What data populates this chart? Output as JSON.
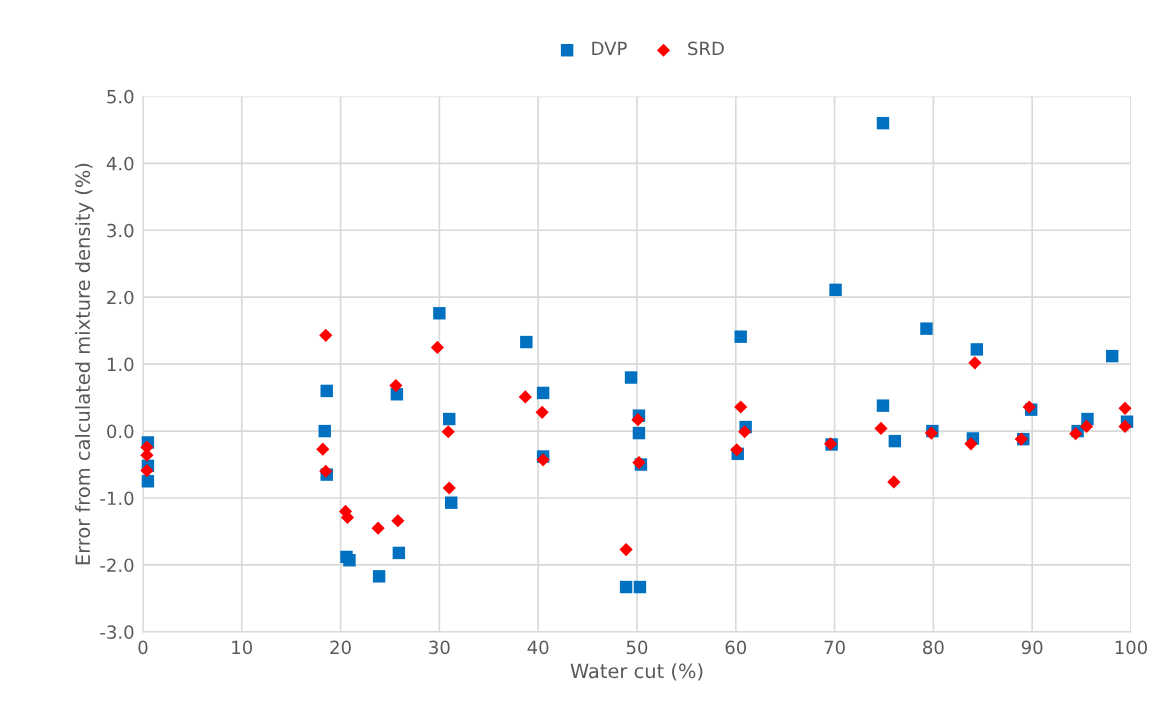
{
  "chart_data": {
    "type": "scatter",
    "xlabel": "Water cut (%)",
    "ylabel": "Error from calculated mixture density (%)",
    "xlim": [
      0,
      100
    ],
    "xticks": [
      0,
      10,
      20,
      30,
      40,
      50,
      60,
      70,
      80,
      90,
      100
    ],
    "ylim": [
      -3,
      5
    ],
    "yticks": [
      {
        "value": -3,
        "label": "-3.0"
      },
      {
        "value": -2,
        "label": "-2.0"
      },
      {
        "value": -1,
        "label": "-1.0"
      },
      {
        "value": 0,
        "label": "0.0"
      },
      {
        "value": 1,
        "label": "1.0"
      },
      {
        "value": 2,
        "label": "2.0"
      },
      {
        "value": 3,
        "label": "3.0"
      },
      {
        "value": 4,
        "label": "4.0"
      },
      {
        "value": 5,
        "label": "5.0"
      }
    ],
    "grid": true,
    "legend": "top",
    "series": [
      {
        "name": "DVP",
        "color": "#0070c0",
        "marker": "square",
        "x": [
          0.5,
          0.5,
          0.5,
          18.4,
          18.6,
          18.6,
          20.6,
          20.9,
          23.9,
          25.9,
          25.7,
          30.0,
          31.0,
          31.2,
          38.8,
          40.5,
          40.5,
          49.4,
          50.2,
          50.2,
          50.4,
          48.9,
          50.3,
          60.5,
          61.0,
          60.2,
          70.1,
          69.7,
          74.9,
          74.9,
          76.1,
          79.3,
          79.9,
          84.4,
          84.0,
          89.1,
          89.9,
          94.6,
          95.6,
          98.1,
          99.6
        ],
        "values": [
          -0.17,
          -0.52,
          -0.75,
          0.0,
          0.6,
          -0.65,
          -1.88,
          -1.93,
          -2.17,
          -1.82,
          0.55,
          1.76,
          0.18,
          -1.07,
          1.33,
          0.57,
          -0.38,
          0.8,
          0.23,
          -0.03,
          -0.5,
          -2.33,
          -2.33,
          1.41,
          0.06,
          -0.34,
          2.11,
          -0.2,
          4.6,
          0.38,
          -0.15,
          1.53,
          0.0,
          1.22,
          -0.11,
          -0.12,
          0.32,
          0.0,
          0.18,
          1.12,
          0.14
        ]
      },
      {
        "name": "SRD",
        "color": "#ff0000",
        "marker": "diamond",
        "x": [
          0.4,
          0.4,
          0.4,
          18.5,
          18.2,
          18.5,
          20.5,
          20.7,
          23.8,
          25.8,
          25.6,
          29.8,
          30.9,
          31.0,
          38.7,
          40.4,
          40.5,
          50.1,
          50.2,
          48.9,
          60.5,
          60.9,
          60.1,
          69.6,
          74.7,
          76.0,
          79.8,
          84.2,
          83.8,
          88.9,
          89.7,
          94.4,
          95.5,
          99.4,
          99.4
        ],
        "values": [
          -0.24,
          -0.36,
          -0.59,
          1.43,
          -0.27,
          -0.6,
          -1.2,
          -1.29,
          -1.45,
          -1.34,
          0.68,
          1.25,
          -0.01,
          -0.85,
          0.51,
          0.28,
          -0.43,
          0.17,
          -0.47,
          -1.77,
          0.36,
          -0.01,
          -0.28,
          -0.19,
          0.04,
          -0.76,
          -0.03,
          1.02,
          -0.19,
          -0.12,
          0.36,
          -0.04,
          0.07,
          0.34,
          0.07
        ]
      }
    ]
  }
}
